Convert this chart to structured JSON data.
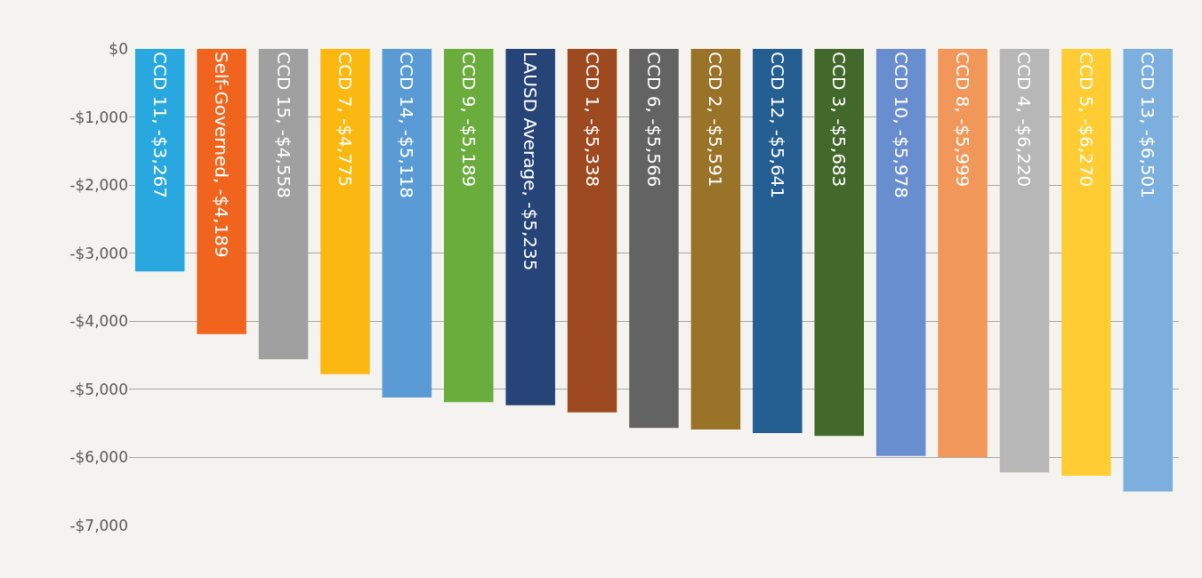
{
  "chart_data": {
    "type": "bar",
    "categories": [
      null,
      null,
      null,
      null,
      null,
      null,
      null,
      null,
      null,
      null,
      null,
      null,
      null,
      null,
      null,
      null,
      null
    ],
    "values": [
      -3267,
      -4189,
      -4558,
      -4775,
      -5118,
      -5189,
      -5235,
      -5338,
      -5566,
      -5591,
      -5641,
      -5683,
      -5978,
      -5999,
      -6220,
      -6270,
      -6501
    ],
    "value_labels": [
      "CCD 11, -$3,267",
      "Self-Governed, -$4,189",
      "CCD 15, -$4,558",
      "CCD 7, -$4,775",
      "CCD 14, -$5,118",
      "CCD 9, -$5,189",
      "LAUSD Average, -$5,235",
      "CCD 1, -$5,338",
      "CCD 6, -$5,566",
      "CCD 2, -$5,591",
      "CCD 12, -$5,641",
      "CCD 3, -$5,683",
      "CCD 10, -$5,978",
      "CCD 8, -$5,999",
      "CCD 4, -$6,220",
      "CCD 5, -$6,270",
      "CCD 13, -$6,501"
    ],
    "colors": [
      "#29a8e0",
      "#f0641e",
      "#a0a0a0",
      "#fbb810",
      "#5b9bd5",
      "#6aad3d",
      "#264478",
      "#9e4a21",
      "#636363",
      "#997328",
      "#255e91",
      "#43682b",
      "#698ed0",
      "#f1975a",
      "#b7b7b7",
      "#ffcd33",
      "#7cafdd"
    ],
    "ylim": [
      -7000,
      0
    ],
    "yticks": [
      {
        "value": 0,
        "label": "$0"
      },
      {
        "value": -1000,
        "label": "-$1,000"
      },
      {
        "value": -2000,
        "label": "-$2,000"
      },
      {
        "value": -3000,
        "label": "-$3,000"
      },
      {
        "value": -4000,
        "label": "-$4,000"
      },
      {
        "value": -5000,
        "label": "-$5,000"
      },
      {
        "value": -6000,
        "label": "-$6,000"
      },
      {
        "value": -7000,
        "label": "-$7,000"
      }
    ],
    "grid": "y",
    "tick_labels": "y"
  }
}
